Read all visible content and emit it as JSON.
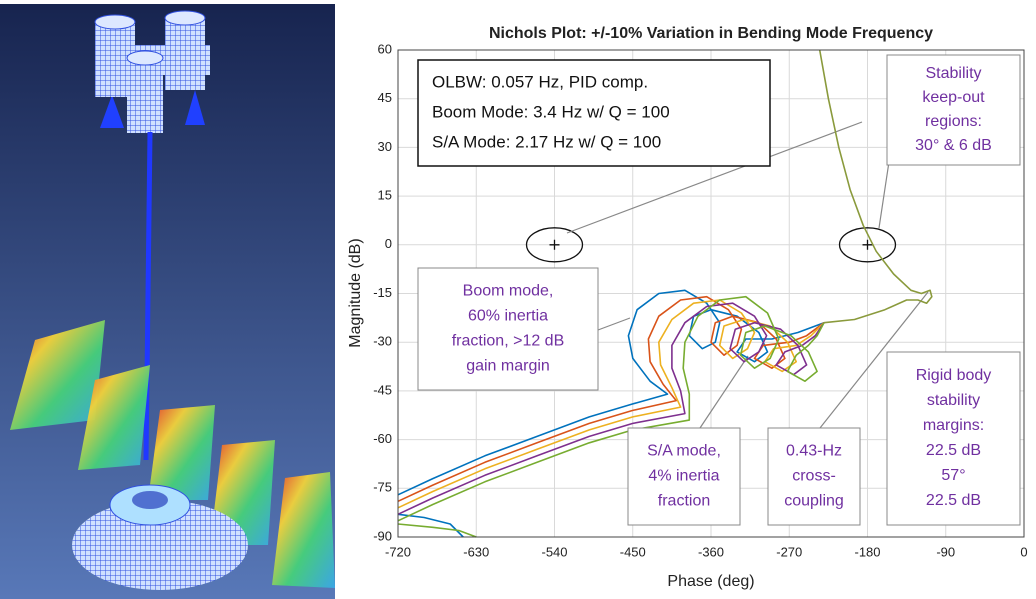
{
  "chart_data": {
    "type": "line",
    "title": "Nichols Plot: +/-10% Variation in Bending Mode Frequency",
    "x_label": "Phase (deg)",
    "y_label": "Magnitude (dB)",
    "xlim": [
      -720,
      0
    ],
    "ylim": [
      -90,
      60
    ],
    "xticks": [
      -720,
      -630,
      -540,
      -450,
      -360,
      -270,
      -180,
      -90,
      0
    ],
    "yticks": [
      -90,
      -75,
      -60,
      -45,
      -30,
      -15,
      0,
      15,
      30,
      45,
      60
    ],
    "grid": true,
    "series": [
      {
        "color": "#0072bd",
        "x": [
          -720,
          -680,
          -620,
          -560,
          -500,
          -450,
          -410,
          -430,
          -450,
          -455,
          -445,
          -420,
          -390,
          -365,
          -350,
          -355,
          -370,
          -385,
          -380,
          -360,
          -330,
          -305,
          -295,
          -310,
          -330,
          -320,
          -290,
          -260,
          -230,
          null,
          -720,
          -690,
          -660,
          -645
        ],
        "values": [
          -77,
          -72,
          -65,
          -59,
          -53,
          -49,
          -46,
          -42,
          -35,
          -28,
          -20,
          -15,
          -14,
          -18,
          -24,
          -30,
          -32,
          -28,
          -22,
          -20,
          -22,
          -27,
          -33,
          -36,
          -33,
          -29,
          -29,
          -27,
          -24,
          null,
          -83,
          -84,
          -86,
          -90
        ]
      },
      {
        "color": "#d95319",
        "x": [
          -720,
          -680,
          -620,
          -560,
          -500,
          -450,
          -400,
          -415,
          -430,
          -432,
          -420,
          -395,
          -365,
          -340,
          -325,
          -330,
          -345,
          -360,
          -355,
          -335,
          -305,
          -285,
          -275,
          -290,
          -310,
          -300,
          -270,
          -250,
          -230
        ],
        "values": [
          -79,
          -74,
          -67,
          -61,
          -55,
          -51,
          -48,
          -43,
          -36,
          -29,
          -22,
          -17,
          -16,
          -20,
          -26,
          -31,
          -34,
          -30,
          -24,
          -22,
          -24,
          -29,
          -35,
          -38,
          -35,
          -31,
          -30,
          -28,
          -24
        ]
      },
      {
        "color": "#edb120",
        "x": [
          -720,
          -680,
          -620,
          -560,
          -500,
          -450,
          -395,
          -405,
          -418,
          -420,
          -405,
          -380,
          -350,
          -325,
          -310,
          -318,
          -335,
          -350,
          -345,
          -322,
          -292,
          -272,
          -262,
          -278,
          -298,
          -288,
          -262,
          -245,
          -230
        ],
        "values": [
          -81,
          -76,
          -69,
          -63,
          -57,
          -53,
          -50,
          -44,
          -37,
          -30,
          -23,
          -18,
          -17,
          -21,
          -27,
          -32,
          -35,
          -31,
          -25,
          -23,
          -25,
          -30,
          -36,
          -39,
          -36,
          -32,
          -31,
          -28,
          -24
        ]
      },
      {
        "color": "#7e2f8e",
        "x": [
          -720,
          -680,
          -620,
          -560,
          -500,
          -450,
          -390,
          -395,
          -405,
          -405,
          -390,
          -365,
          -335,
          -310,
          -296,
          -305,
          -322,
          -338,
          -332,
          -310,
          -280,
          -260,
          -250,
          -265,
          -285,
          -275,
          -255,
          -240,
          -230
        ],
        "values": [
          -83,
          -78,
          -71,
          -65,
          -59,
          -55,
          -52,
          -45,
          -38,
          -31,
          -24,
          -19,
          -18,
          -22,
          -28,
          -33,
          -36,
          -32,
          -26,
          -24,
          -26,
          -31,
          -37,
          -40,
          -37,
          -33,
          -31,
          -28,
          -24
        ]
      },
      {
        "color": "#77ac30",
        "x": [
          -720,
          -680,
          -620,
          -560,
          -500,
          -450,
          -385,
          -385,
          -392,
          -390,
          -375,
          -350,
          -320,
          -295,
          -282,
          -292,
          -310,
          -326,
          -320,
          -298,
          -268,
          -248,
          -238,
          -252,
          -272,
          -262,
          -248,
          -238,
          -230,
          null,
          -720,
          -680,
          -650,
          -630
        ],
        "values": [
          -85,
          -80,
          -73,
          -67,
          -61,
          -57,
          -54,
          -46,
          -38,
          -30,
          -22,
          -17,
          -16,
          -21,
          -29,
          -35,
          -38,
          -34,
          -27,
          -25,
          -28,
          -33,
          -39,
          -42,
          -39,
          -34,
          -31,
          -28,
          -24,
          null,
          -86,
          -87,
          -88,
          -90
        ]
      },
      {
        "color": "#8a9a3c",
        "x": [
          -235,
          -225,
          -213,
          -200,
          -185,
          -170,
          -150,
          -130,
          -118,
          -108,
          -106,
          -112,
          -122,
          -135,
          -160,
          -195,
          -230
        ],
        "values": [
          60,
          45,
          30,
          17,
          6,
          -2,
          -9,
          -14,
          -15,
          -14,
          -16,
          -18,
          -17,
          -17,
          -20,
          -23,
          -24
        ]
      }
    ],
    "keepout_centers": [
      {
        "x": -540,
        "y": 0
      },
      {
        "x": -180,
        "y": 0
      }
    ],
    "annotations": [
      {
        "color": "#111111",
        "lines": [
          "OLBW: 0.057 Hz, PID comp.",
          "Boom Mode: 3.4 Hz w/ Q = 100",
          "S/A Mode: 2.17 Hz w/ Q = 100"
        ]
      },
      {
        "color": "#7030a0",
        "lines": [
          "Stability",
          "keep-out",
          "regions:",
          "30° & 6 dB"
        ]
      },
      {
        "color": "#7030a0",
        "lines": [
          "Boom mode,",
          "60% inertia",
          "fraction, >12 dB",
          "gain margin"
        ]
      },
      {
        "color": "#7030a0",
        "lines": [
          "S/A mode,",
          "4% inertia",
          "fraction"
        ]
      },
      {
        "color": "#7030a0",
        "lines": [
          "0.43-Hz",
          "cross-",
          "coupling"
        ]
      },
      {
        "color": "#7030a0",
        "lines": [
          "Rigid body",
          "stability",
          "margins:",
          "22.5 dB",
          "57°",
          "22.5 dB"
        ]
      }
    ]
  }
}
